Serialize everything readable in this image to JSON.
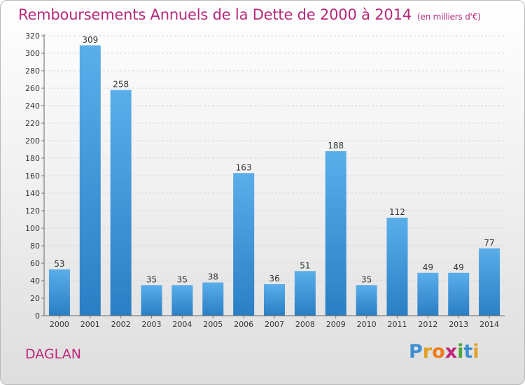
{
  "header": {
    "title": "Remboursements Annuels de la Dette de 2000 à 2014",
    "subtitle": "(en milliers d'€)"
  },
  "footer": {
    "commune": "DAGLAN",
    "logo_letters": [
      "P",
      "r",
      "o",
      "x",
      "i",
      "t",
      "i"
    ]
  },
  "colors": {
    "title": "#b5297a",
    "bar_top": "#5aaeea",
    "bar_bottom": "#2a7ec4",
    "axis": "#555555"
  },
  "chart_data": {
    "type": "bar",
    "categories": [
      "2000",
      "2001",
      "2002",
      "2003",
      "2004",
      "2005",
      "2006",
      "2007",
      "2008",
      "2009",
      "2010",
      "2011",
      "2012",
      "2013",
      "2014"
    ],
    "values": [
      53,
      309,
      258,
      35,
      35,
      38,
      163,
      36,
      51,
      188,
      35,
      112,
      49,
      49,
      77
    ],
    "ylim": [
      0,
      320
    ],
    "yticks": [
      0,
      20,
      40,
      60,
      80,
      100,
      120,
      140,
      160,
      180,
      200,
      220,
      240,
      260,
      280,
      300,
      320
    ],
    "grid": true,
    "legend": "none"
  }
}
